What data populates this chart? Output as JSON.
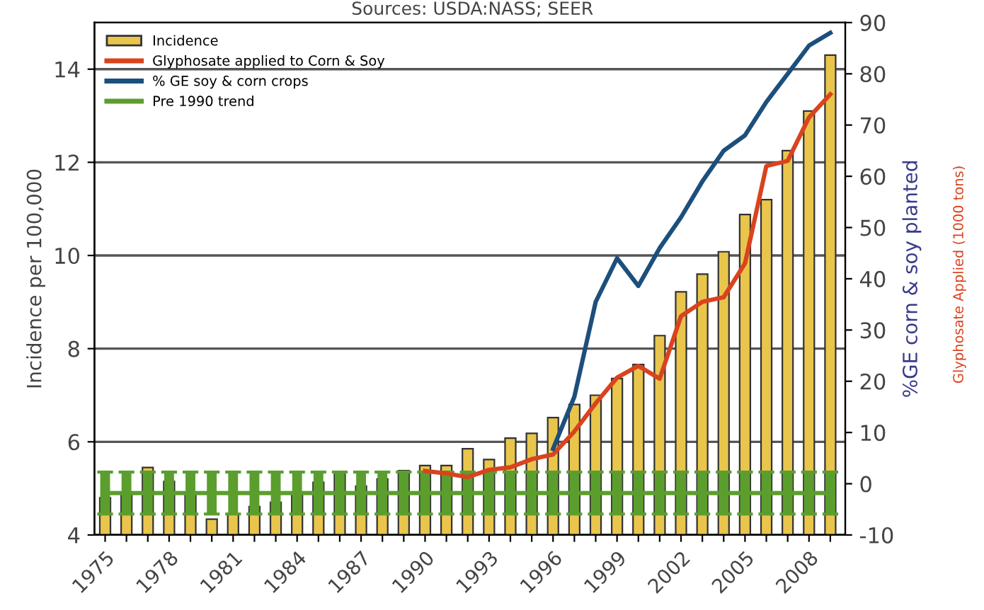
{
  "chart_data": {
    "type": "bar",
    "x": [
      1975,
      1976,
      1977,
      1978,
      1979,
      1980,
      1981,
      1982,
      1983,
      1984,
      1985,
      1986,
      1987,
      1988,
      1989,
      1990,
      1991,
      1992,
      1993,
      1994,
      1995,
      1996,
      1997,
      1998,
      1999,
      2000,
      2001,
      2002,
      2003,
      2004,
      2005,
      2006,
      2007,
      2008,
      2009
    ],
    "series": [
      {
        "name": "Incidence",
        "color": "#e9c54c",
        "values": [
          4.8,
          4.9,
          5.45,
          5.15,
          4.9,
          4.34,
          4.44,
          4.61,
          4.7,
          4.85,
          5.13,
          5.3,
          5.05,
          5.2,
          5.38,
          5.49,
          5.49,
          5.85,
          5.62,
          6.08,
          6.18,
          6.52,
          6.8,
          7.0,
          7.36,
          7.66,
          8.28,
          9.22,
          9.6,
          10.08,
          10.88,
          11.2,
          12.25,
          13.1,
          14.3
        ]
      },
      {
        "name": "Glyphosate applied to Corn & Soy",
        "type": "line",
        "axis": "y2",
        "color": "#d9431e",
        "values": [
          null,
          null,
          null,
          null,
          null,
          null,
          null,
          null,
          null,
          null,
          null,
          null,
          null,
          null,
          null,
          2.5,
          2,
          1.3,
          2.7,
          3.2,
          4.8,
          5.7,
          10.2,
          15.7,
          20.7,
          23,
          20.5,
          32.7,
          35.5,
          36.4,
          43,
          62,
          63,
          71.5,
          76
        ]
      },
      {
        "name": "% GE soy & corn crops",
        "type": "line",
        "axis": "y2",
        "color": "#1c4f7c",
        "values": [
          null,
          null,
          null,
          null,
          null,
          null,
          null,
          null,
          null,
          null,
          null,
          null,
          null,
          null,
          null,
          null,
          null,
          null,
          null,
          null,
          null,
          6.8,
          17,
          35.5,
          44,
          38.6,
          46,
          52,
          59,
          65,
          68,
          74.5,
          80,
          85.5,
          88
        ]
      },
      {
        "name": "Pre 1990 trend",
        "type": "line",
        "color": "#5b9e2e",
        "values": [
          4.9,
          4.9,
          4.9,
          4.9,
          4.9,
          4.9,
          4.9,
          4.9,
          4.9,
          4.9,
          4.9,
          4.9,
          4.9,
          4.9,
          4.9,
          4.9,
          4.9,
          4.9,
          4.9,
          4.9,
          4.9,
          4.9,
          4.9,
          4.9,
          4.9,
          4.9,
          4.9,
          4.9,
          4.9,
          4.9,
          4.9,
          4.9,
          4.9,
          4.9,
          4.9
        ],
        "errors": [
          0.45,
          0.45,
          0.45,
          0.45,
          0.45,
          0.45,
          0.45,
          0.45,
          0.45,
          0.45,
          0.45,
          0.45,
          0.45,
          0.45,
          0.45,
          0.45,
          0.45,
          0.45,
          0.45,
          0.45,
          0.45,
          0.45,
          0.45,
          0.45,
          0.45,
          0.45,
          0.45,
          0.45,
          0.45,
          0.45,
          0.45,
          0.45,
          0.45,
          0.45,
          0.45
        ]
      }
    ],
    "ylabel": "Incidence per 100,000",
    "y2label": "%GE corn & soy planted",
    "annotations": [
      "Sources: USDA:NASS; SEER",
      "Glyphosate Applied (1000 tons)"
    ],
    "xlim": [
      1974.5,
      2009.7
    ],
    "xticks": [
      1975,
      {
        "value": 1976,
        "label": null
      },
      {
        "value": 1977,
        "label": null
      },
      1978,
      {
        "value": 1979,
        "label": null
      },
      {
        "value": 1980,
        "label": null
      },
      1981,
      {
        "value": 1982,
        "label": null
      },
      {
        "value": 1983,
        "label": null
      },
      1984,
      {
        "value": 1985,
        "label": null
      },
      {
        "value": 1986,
        "label": null
      },
      1987,
      {
        "value": 1988,
        "label": null
      },
      {
        "value": 1989,
        "label": null
      },
      1990,
      {
        "value": 1991,
        "label": null
      },
      {
        "value": 1992,
        "label": null
      },
      1993,
      {
        "value": 1994,
        "label": null
      },
      {
        "value": 1995,
        "label": null
      },
      1996,
      {
        "value": 1997,
        "label": null
      },
      {
        "value": 1998,
        "label": null
      },
      1999,
      {
        "value": 2000,
        "label": null
      },
      {
        "value": 2001,
        "label": null
      },
      2002,
      {
        "value": 2003,
        "label": null
      },
      {
        "value": 2004,
        "label": null
      },
      2005,
      {
        "value": 2006,
        "label": null
      },
      {
        "value": 2007,
        "label": null
      },
      2008,
      {
        "value": 2009,
        "label": null
      }
    ],
    "ylim": [
      4,
      15
    ],
    "yticks": [
      4,
      6,
      8,
      10,
      12,
      14
    ],
    "y2lim": [
      -10,
      90
    ],
    "y2ticks": [
      -10,
      0,
      10,
      20,
      30,
      40,
      50,
      60,
      70,
      80,
      90
    ],
    "grid": "y",
    "legend": "top left",
    "marker": "none",
    "line_style": "solid"
  }
}
